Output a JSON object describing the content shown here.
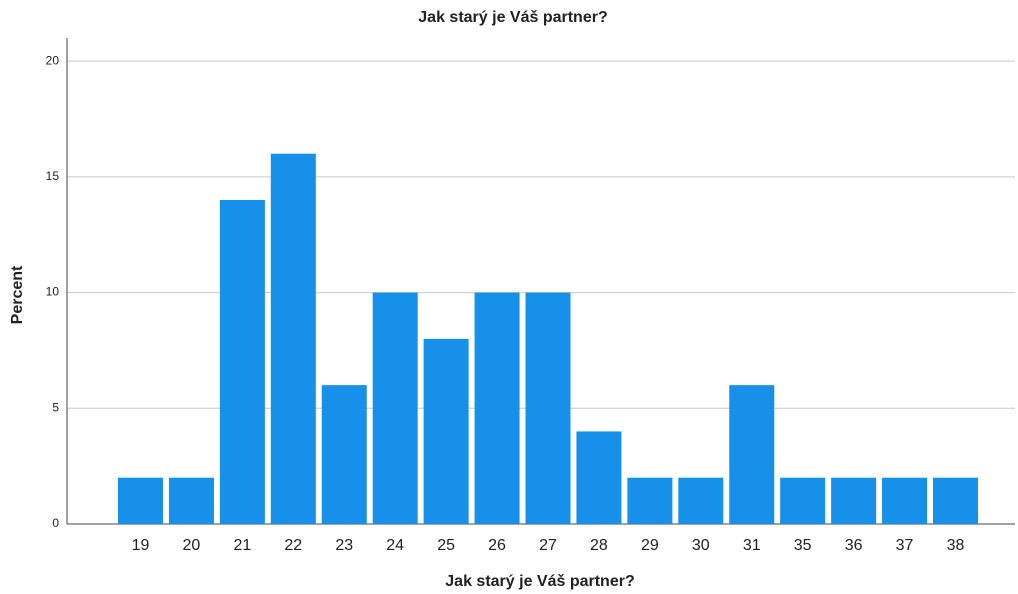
{
  "chart_data": {
    "type": "bar",
    "title": "Jak starý je Váš partner?",
    "x_label": "Jak starý je Váš partner?",
    "y_label": "Percent",
    "categories": [
      "19",
      "20",
      "21",
      "22",
      "23",
      "24",
      "25",
      "26",
      "27",
      "28",
      "29",
      "30",
      "31",
      "35",
      "36",
      "37",
      "38"
    ],
    "values": [
      2,
      2,
      14,
      16,
      6,
      10,
      8,
      10,
      10,
      4,
      2,
      2,
      6,
      2,
      2,
      2,
      2
    ],
    "color": "#1690e8",
    "ylim": [
      0,
      21
    ],
    "yticks": [
      0,
      5,
      10,
      15,
      20
    ],
    "grid": true
  }
}
